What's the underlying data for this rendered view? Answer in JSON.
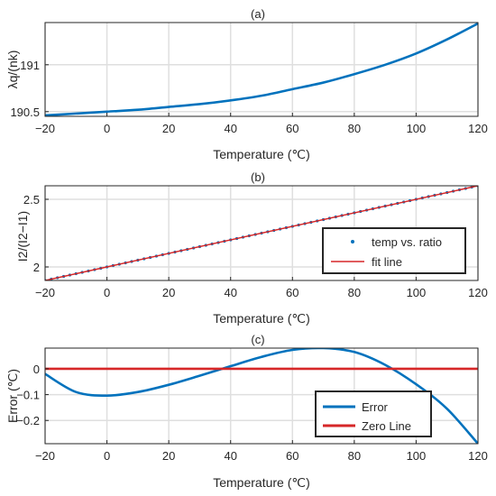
{
  "chart_data": [
    {
      "id": "a",
      "type": "line",
      "title": "(a)",
      "xlabel": "Temperature (℃)",
      "ylabel": "λq/(nk)",
      "xlim": [
        -20,
        120
      ],
      "ylim": [
        190.45,
        191.45
      ],
      "xticks": [
        -20,
        0,
        20,
        40,
        60,
        80,
        100,
        120
      ],
      "yticks": [
        190.5,
        191
      ],
      "grid": true,
      "series": [
        {
          "color": "#0072BD",
          "x": [
            -20,
            -10,
            0,
            10,
            20,
            30,
            40,
            50,
            60,
            70,
            80,
            90,
            100,
            110,
            120
          ],
          "y": [
            190.46,
            190.48,
            190.5,
            190.52,
            190.55,
            190.58,
            190.62,
            190.67,
            190.74,
            190.81,
            190.9,
            191.0,
            191.12,
            191.27,
            191.44
          ]
        }
      ]
    },
    {
      "id": "b",
      "type": "line",
      "title": "(b)",
      "xlabel": "Temperature (℃)",
      "ylabel": "I2/(I2−I1)",
      "xlim": [
        -20,
        120
      ],
      "ylim": [
        1.9,
        2.6
      ],
      "xticks": [
        -20,
        0,
        20,
        40,
        60,
        80,
        100,
        120
      ],
      "yticks": [
        2,
        2.5
      ],
      "grid": true,
      "legend_position": "bottom-right",
      "series": [
        {
          "name": "temp vs. ratio",
          "style": "markers",
          "color": "#0072BD",
          "x_start": -20,
          "x_end": 120,
          "x_step": 2,
          "y_at_x_start": 1.9,
          "y_at_x_end": 2.6
        },
        {
          "name": "fit line",
          "style": "line",
          "color": "#D62728",
          "x": [
            -20,
            120
          ],
          "y": [
            1.9,
            2.6
          ]
        }
      ]
    },
    {
      "id": "c",
      "type": "line",
      "title": "(c)",
      "xlabel": "Temperature (℃)",
      "ylabel": "Error (℃)",
      "xlim": [
        -20,
        120
      ],
      "ylim": [
        -0.29,
        0.08
      ],
      "xticks": [
        -20,
        0,
        20,
        40,
        60,
        80,
        100,
        120
      ],
      "yticks": [
        -0.2,
        -0.1,
        0
      ],
      "grid": true,
      "legend_position": "bottom-right",
      "series": [
        {
          "name": "Error",
          "color": "#0072BD",
          "x": [
            -20,
            -10,
            0,
            10,
            20,
            30,
            40,
            50,
            60,
            70,
            80,
            90,
            100,
            110,
            120
          ],
          "y": [
            -0.02,
            -0.09,
            -0.104,
            -0.09,
            -0.062,
            -0.027,
            0.01,
            0.046,
            0.073,
            0.08,
            0.065,
            0.015,
            -0.06,
            -0.155,
            -0.29
          ]
        },
        {
          "name": "Zero Line",
          "color": "#D62728",
          "x": [
            -20,
            120
          ],
          "y": [
            0,
            0
          ]
        }
      ]
    }
  ]
}
